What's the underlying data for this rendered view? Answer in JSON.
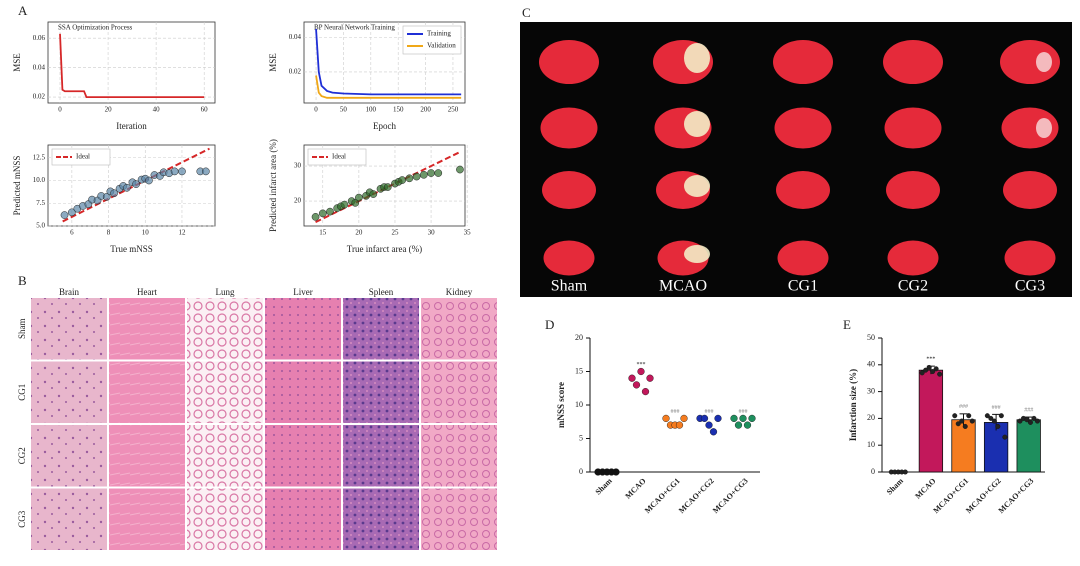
{
  "panel_labels": [
    "A",
    "B",
    "C",
    "D",
    "E"
  ],
  "chart_data": [
    {
      "type": "line",
      "title": "SSA Optimization Process",
      "xlabel": "Iteration",
      "ylabel": "MSE",
      "x": [
        0,
        1,
        2,
        10,
        11,
        60
      ],
      "series": [
        {
          "color": "#d62728",
          "values": [
            0.063,
            0.025,
            0.024,
            0.024,
            0.02,
            0.02
          ]
        }
      ],
      "xlim": [
        -5,
        64.5
      ],
      "ylim": [
        0.016,
        0.071
      ],
      "xticks": [
        0,
        20,
        40,
        60
      ],
      "yticks": [
        0.02,
        0.04,
        0.06
      ],
      "grid": true
    },
    {
      "type": "line",
      "title": "BP Neural Network Training",
      "xlabel": "Epoch",
      "ylabel": "MSE",
      "x": [
        0,
        5,
        10,
        20,
        30,
        50,
        100,
        150,
        200,
        250,
        265
      ],
      "series": [
        {
          "name": "Training",
          "color": "#1f2fd6",
          "values": [
            0.045,
            0.02,
            0.012,
            0.009,
            0.008,
            0.0075,
            0.007,
            0.007,
            0.007,
            0.007,
            0.007
          ]
        },
        {
          "name": "Validation",
          "color": "#f0a818",
          "values": [
            0.018,
            0.008,
            0.006,
            0.005,
            0.005,
            0.005,
            0.005,
            0.005,
            0.005,
            0.005,
            0.005
          ]
        }
      ],
      "xlim": [
        -22,
        272
      ],
      "ylim": [
        0.002,
        0.049
      ],
      "xticks": [
        0,
        50,
        100,
        150,
        200,
        250
      ],
      "yticks": [
        0.02,
        0.04
      ],
      "grid": true,
      "legend": "upper right"
    },
    {
      "type": "scatter",
      "xlabel": "True mNSS",
      "ylabel": "Predicted mNSS",
      "series": [
        {
          "name": "Ideal",
          "color": "#d62728",
          "x": [
            5.5,
            13.5
          ],
          "values": [
            5.5,
            13.5
          ]
        },
        {
          "color": "#5b86a6",
          "x": [
            5.6,
            6,
            6.3,
            6.6,
            6.9,
            7.1,
            7.4,
            7.6,
            7.9,
            8.1,
            8.3,
            8.6,
            8.8,
            9,
            9.3,
            9.5,
            9.8,
            10,
            10.2,
            10.5,
            10.8,
            11,
            11.3,
            11.6,
            12,
            13,
            13.3
          ],
          "values": [
            6.2,
            6.5,
            6.9,
            7.2,
            7.4,
            7.9,
            7.8,
            8.3,
            8.2,
            8.8,
            8.6,
            9.1,
            9.4,
            9.2,
            9.8,
            9.6,
            10.1,
            10.2,
            10,
            10.6,
            10.5,
            10.9,
            10.8,
            11,
            11,
            11,
            11
          ]
        }
      ],
      "xlim": [
        4.7,
        13.8
      ],
      "ylim": [
        5,
        13.9
      ],
      "xticks": [
        6,
        8,
        10,
        12
      ],
      "yticks": [
        {
          "value": 5,
          "label": "5.0"
        },
        7.5,
        {
          "value": 10,
          "label": "10.0"
        },
        12.5
      ],
      "grid": true,
      "legend": "upper left"
    },
    {
      "type": "scatter",
      "xlabel": "True infarct area (%)",
      "ylabel": "Predicted infarct area (%)",
      "series": [
        {
          "name": "Ideal",
          "color": "#d62728",
          "x": [
            14,
            34
          ],
          "values": [
            14,
            34
          ]
        },
        {
          "color": "#2f6b2a",
          "x": [
            14,
            15,
            16,
            17,
            17.5,
            18,
            19,
            19.5,
            20,
            21,
            21.5,
            22,
            23,
            23.5,
            24,
            25,
            25.5,
            26,
            27,
            28,
            29,
            30,
            31,
            34
          ],
          "values": [
            15.5,
            16.5,
            17,
            18,
            18.5,
            19,
            20,
            19.5,
            21,
            21.5,
            22.5,
            22,
            23.5,
            24,
            24,
            25,
            25.5,
            26,
            26.5,
            27,
            27.5,
            28,
            28,
            29
          ]
        }
      ],
      "xlim": [
        12.4,
        34.7
      ],
      "ylim": [
        12.9,
        36
      ],
      "xticks": [
        15,
        20,
        25,
        30,
        35
      ],
      "yticks": [
        20,
        30
      ],
      "grid": true,
      "legend": "upper left"
    },
    {
      "type": "dot",
      "ylabel": "mNSS score",
      "categories": [
        "Sham",
        "MCAO",
        "MCAO+CG1",
        "MCAO+CG2",
        "MCAO+CG3"
      ],
      "colors": [
        "#111111",
        "#c2185b",
        "#f57c20",
        "#1a2fb0",
        "#1e8f5e"
      ],
      "points": [
        [
          0,
          0,
          0,
          0,
          0
        ],
        [
          14,
          13,
          15,
          12,
          14
        ],
        [
          8,
          7,
          7,
          7,
          8
        ],
        [
          8,
          8,
          7,
          6,
          8
        ],
        [
          8,
          7,
          8,
          7,
          8
        ]
      ],
      "annotations": [
        null,
        "***",
        "###",
        "###",
        "###"
      ],
      "ylim": [
        0,
        20
      ],
      "yticks": [
        0,
        5,
        10,
        15,
        20
      ]
    },
    {
      "type": "bar",
      "ylabel": "Infarction size (%)",
      "categories": [
        "Sham",
        "MCAO",
        "MCAO+CG1",
        "MCAO+CG2",
        "MCAO+CG3"
      ],
      "colors": [
        "#111111",
        "#c2185b",
        "#f57c20",
        "#1a2fb0",
        "#1e8f5e"
      ],
      "values": [
        0,
        38,
        19.5,
        18.5,
        19.5
      ],
      "errors": [
        0,
        1.5,
        2.2,
        3,
        1
      ],
      "points": [
        [
          0,
          0,
          0,
          0,
          0
        ],
        [
          37,
          38,
          39,
          37.5,
          38.5,
          36.5
        ],
        [
          21,
          18,
          19,
          17,
          21,
          19
        ],
        [
          21,
          20,
          19,
          17,
          21,
          13
        ],
        [
          19,
          20,
          19.5,
          18.5,
          20,
          19
        ]
      ],
      "annotations": [
        null,
        "***",
        "###",
        "###",
        "###"
      ],
      "ylim": [
        0,
        50
      ],
      "yticks": [
        0,
        10,
        20,
        30,
        40,
        50
      ]
    }
  ],
  "histology": {
    "columns": [
      "Brain",
      "Heart",
      "Lung",
      "Liver",
      "Spleen",
      "Kidney"
    ],
    "rows": [
      "Sham",
      "CG1",
      "CG2",
      "CG3"
    ]
  },
  "brain_photo": {
    "labels": [
      "Sham",
      "MCAO",
      "CG1",
      "CG2",
      "CG3"
    ]
  }
}
